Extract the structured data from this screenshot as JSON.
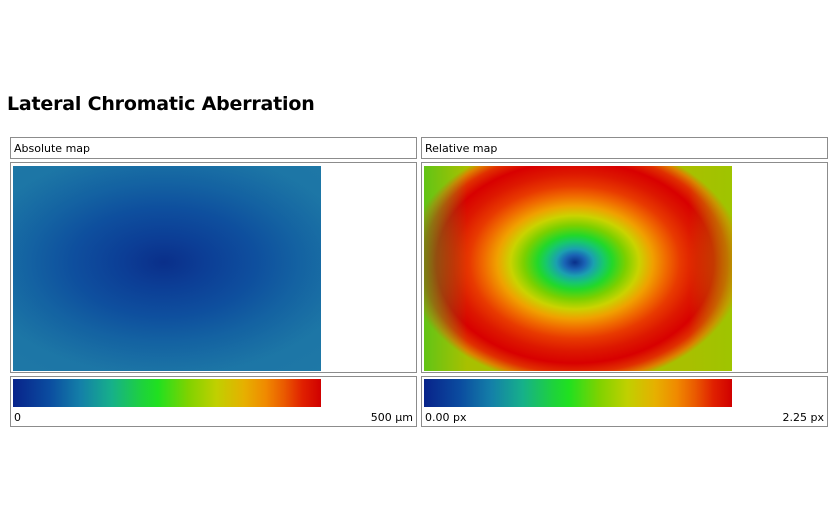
{
  "page": {
    "title": "Lateral Chromatic Aberration"
  },
  "panels": [
    {
      "header": "Absolute map",
      "legend": {
        "min_label": "0",
        "max_label": "500 µm"
      }
    },
    {
      "header": "Relative map",
      "legend": {
        "min_label": "0.00 px",
        "max_label": "2.25 px"
      }
    }
  ],
  "colormap": {
    "low_color": "#08238a",
    "mid_color": "#20e020",
    "high_color": "#d00000"
  }
}
